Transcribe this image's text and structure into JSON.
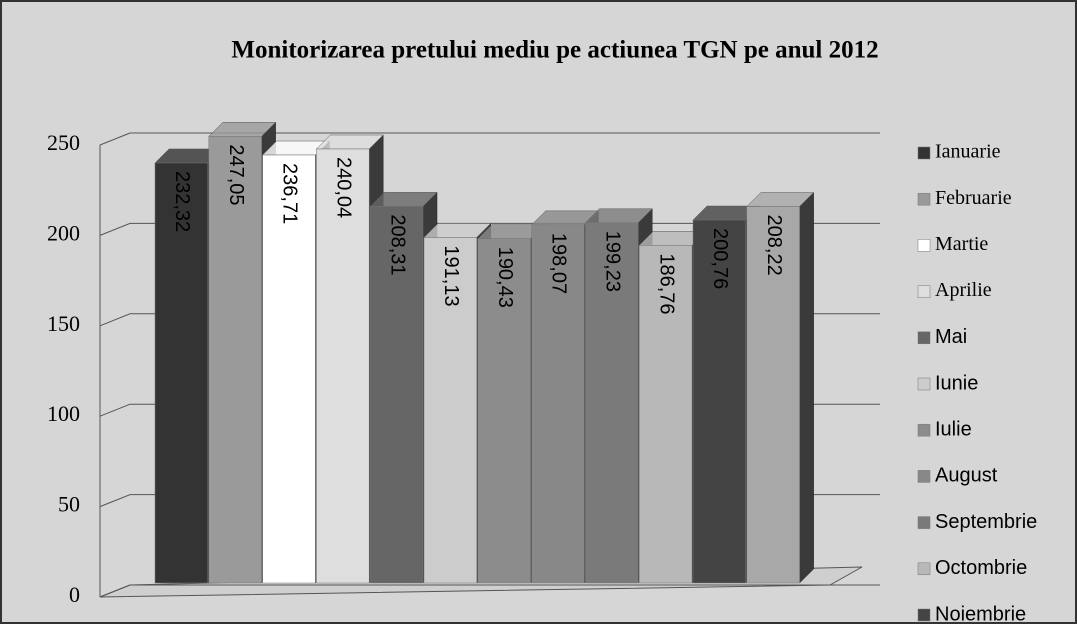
{
  "chart_data": {
    "type": "bar",
    "title": "Monitorizarea pretului mediu pe actiunea TGN pe anul 2012",
    "ylim": [
      0,
      250
    ],
    "yticks": [
      0,
      50,
      100,
      150,
      200,
      250
    ],
    "grid": true,
    "series": [
      {
        "name": "Ianuarie",
        "color": "#333333",
        "values": [
          232.32
        ],
        "value_labels": [
          "232,32"
        ]
      },
      {
        "name": "Februarie",
        "color": "#9a9a9a",
        "values": [
          247.05
        ],
        "value_labels": [
          "247,05"
        ]
      },
      {
        "name": "Martie",
        "color": "#ffffff",
        "values": [
          236.71
        ],
        "value_labels": [
          "236,71"
        ]
      },
      {
        "name": "Aprilie",
        "color": "#dedede",
        "values": [
          240.04
        ],
        "value_labels": [
          "240,04"
        ]
      },
      {
        "name": "Mai",
        "color": "#666666",
        "values": [
          208.31
        ],
        "value_labels": [
          "208,31"
        ]
      },
      {
        "name": "Iunie",
        "color": "#cccccc",
        "values": [
          191.13
        ],
        "value_labels": [
          "191,13"
        ]
      },
      {
        "name": "Iulie",
        "color": "#8c8c8c",
        "values": [
          190.43
        ],
        "value_labels": [
          "190,43"
        ]
      },
      {
        "name": "August",
        "color": "#888888",
        "values": [
          198.07
        ],
        "value_labels": [
          "198,07"
        ]
      },
      {
        "name": "Septembrie",
        "color": "#7a7a7a",
        "values": [
          199.23
        ],
        "value_labels": [
          "199,23"
        ]
      },
      {
        "name": "Octombrie",
        "color": "#b8b8b8",
        "values": [
          186.76
        ],
        "value_labels": [
          "186,76"
        ]
      },
      {
        "name": "Noiembrie",
        "color": "#444444",
        "values": [
          200.76
        ],
        "value_labels": [
          "200,76"
        ]
      },
      {
        "color": "#a8a8a8",
        "values": [
          208.22
        ],
        "value_labels": [
          "208,22"
        ]
      }
    ]
  }
}
